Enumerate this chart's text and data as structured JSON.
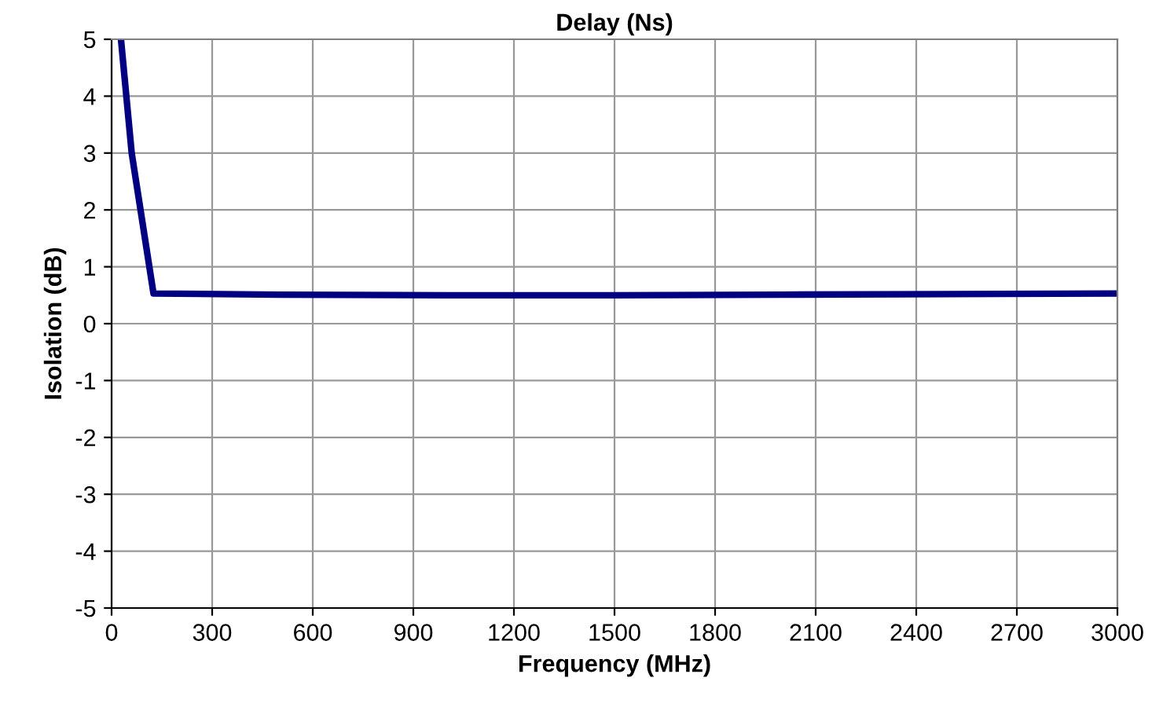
{
  "chart_data": {
    "type": "line",
    "title": "Delay (Ns)",
    "xlabel": "Frequency (MHz)",
    "ylabel": "Isolation (dB)",
    "series": [
      {
        "color": "#000080",
        "x": [
          28,
          60,
          125,
          500,
          1000,
          1500,
          2000,
          2500,
          3000
        ],
        "values": [
          5,
          3,
          0.53,
          0.51,
          0.5,
          0.5,
          0.51,
          0.52,
          0.53
        ]
      }
    ],
    "xlim": [
      0,
      3000
    ],
    "xticks": [
      0,
      300,
      600,
      900,
      1200,
      1500,
      1800,
      2100,
      2400,
      2700,
      3000
    ],
    "ylim": [
      -5,
      5
    ],
    "yticks": [
      -5,
      -4,
      -3,
      -2,
      -1,
      0,
      1,
      2,
      3,
      4,
      5
    ],
    "grid": true,
    "marker": "none",
    "line_style": "solid"
  }
}
